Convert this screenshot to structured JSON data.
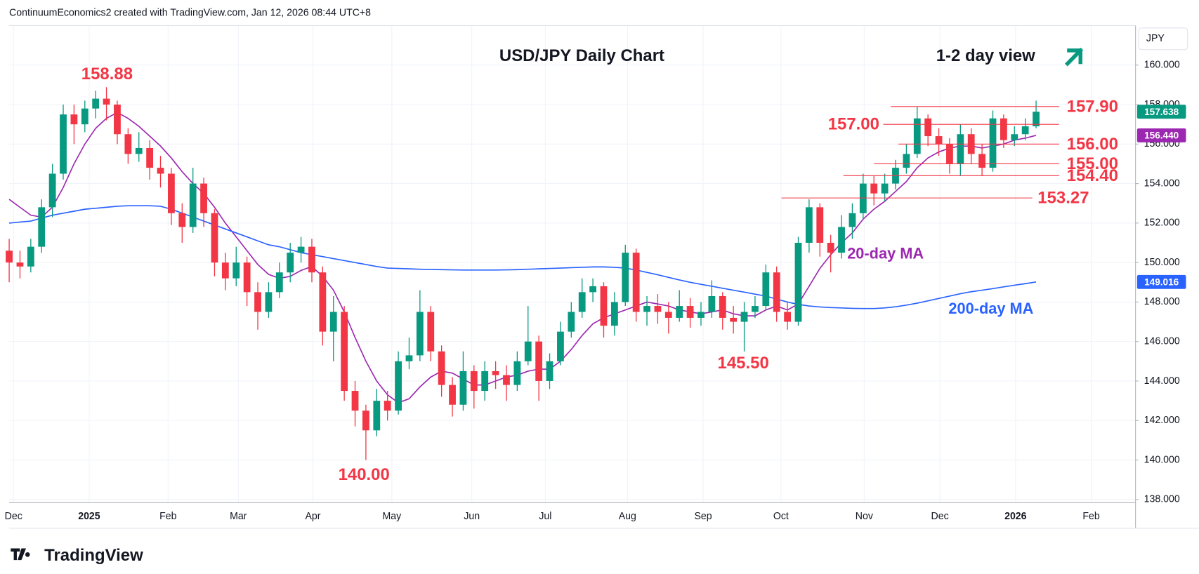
{
  "header": "ContinuumEconomics2 created with TradingView.com, Jan 12, 2026 08:44 UTC+8",
  "logo": "TradingView",
  "chart_data": {
    "type": "candlestick",
    "title": "USD/JPY Daily Chart",
    "subtitle": "1-2 day view",
    "currency": "JPY",
    "up_color": "#089981",
    "down_color": "#f23645",
    "grid": true,
    "xlim": [
      0,
      104.2
    ],
    "xticks": [
      {
        "value": 0.4,
        "label": "Dec"
      },
      {
        "value": 7.4,
        "label": "2025"
      },
      {
        "value": 14.7,
        "label": "Feb"
      },
      {
        "value": 21.2,
        "label": "Mar"
      },
      {
        "value": 28.1,
        "label": "Apr"
      },
      {
        "value": 35.4,
        "label": "May"
      },
      {
        "value": 42.8,
        "label": "Jun"
      },
      {
        "value": 49.6,
        "label": "Jul"
      },
      {
        "value": 57.2,
        "label": "Aug"
      },
      {
        "value": 64.2,
        "label": "Sep"
      },
      {
        "value": 71.4,
        "label": "Oct"
      },
      {
        "value": 79.1,
        "label": "Nov"
      },
      {
        "value": 86.1,
        "label": "Dec"
      },
      {
        "value": 93.1,
        "label": "2026"
      },
      {
        "value": 100.1,
        "label": "Feb"
      }
    ],
    "ylim": [
      137.84,
      162.0
    ],
    "yticks": [
      {
        "value": 138,
        "label": "138.000"
      },
      {
        "value": 140,
        "label": "140.000"
      },
      {
        "value": 142,
        "label": "142.000"
      },
      {
        "value": 144,
        "label": "144.000"
      },
      {
        "value": 146,
        "label": "146.000"
      },
      {
        "value": 148,
        "label": "148.000"
      },
      {
        "value": 150,
        "label": "150.000"
      },
      {
        "value": 152,
        "label": "152.000"
      },
      {
        "value": 154,
        "label": "154.000"
      },
      {
        "value": 156,
        "label": "156.000"
      },
      {
        "value": 158,
        "label": "158.000"
      },
      {
        "value": 160,
        "label": "160.000"
      }
    ],
    "open": [
      150.6,
      150.0,
      149.8,
      150.8,
      152.8,
      154.5,
      157.5,
      157.0,
      157.8,
      158.3,
      158.0,
      156.5,
      155.5,
      155.8,
      154.8,
      154.5,
      152.5,
      151.8,
      154.0,
      152.5,
      150.0,
      149.2,
      150.0,
      148.5,
      147.5,
      148.5,
      149.5,
      150.5,
      150.8,
      149.5,
      146.5,
      147.5,
      143.5,
      142.5,
      141.5,
      143.0,
      142.5,
      145.0,
      145.3,
      147.5,
      145.5,
      143.8,
      142.8,
      144.5,
      143.5,
      144.5,
      144.3,
      143.8,
      145.0,
      146.0,
      144.0,
      145.0,
      146.5,
      147.5,
      148.5,
      148.8,
      146.8,
      148.0,
      150.5,
      147.5,
      147.8,
      147.5,
      147.2,
      147.8,
      147.2,
      147.5,
      148.3,
      147.2,
      147.0,
      147.5,
      147.8,
      149.5,
      147.5,
      147.0,
      151.0,
      152.8,
      151.0,
      150.5,
      151.8,
      152.5,
      154.0,
      153.5,
      154.0,
      154.8,
      155.5,
      157.3,
      156.4,
      156.0,
      155.0,
      156.5,
      155.5,
      154.8,
      157.3,
      156.2,
      156.5,
      156.9
    ],
    "high": [
      151.2,
      150.6,
      151.2,
      153.2,
      155.0,
      158.0,
      158.0,
      158.2,
      158.7,
      158.88,
      158.2,
      156.8,
      156.6,
      156.2,
      155.4,
      154.8,
      153.0,
      154.8,
      154.3,
      152.7,
      150.5,
      150.8,
      150.3,
      149.0,
      149.0,
      150.0,
      151.0,
      151.3,
      151.2,
      149.8,
      148.3,
      147.8,
      144.0,
      142.8,
      143.6,
      143.5,
      145.5,
      146.2,
      148.6,
      147.8,
      145.8,
      144.2,
      145.5,
      144.8,
      145.0,
      145.0,
      144.8,
      145.5,
      147.8,
      146.3,
      145.4,
      147.0,
      148.0,
      149.2,
      149.2,
      149.0,
      148.5,
      150.9,
      150.7,
      148.3,
      148.4,
      148.0,
      148.6,
      148.2,
      148.0,
      149.1,
      148.5,
      147.8,
      148.0,
      148.3,
      149.9,
      149.8,
      148.0,
      151.3,
      153.2,
      153.0,
      151.4,
      152.4,
      153.0,
      154.5,
      154.4,
      154.5,
      155.2,
      156.0,
      157.9,
      157.5,
      156.8,
      156.3,
      157.0,
      156.8,
      156.0,
      157.7,
      157.5,
      156.9,
      157.3,
      158.2
    ],
    "low": [
      149.0,
      149.2,
      149.5,
      150.5,
      152.3,
      154.2,
      156.0,
      156.6,
      157.3,
      157.2,
      156.0,
      155.0,
      155.1,
      154.2,
      153.8,
      151.9,
      151.0,
      151.5,
      151.8,
      149.3,
      148.6,
      148.8,
      147.8,
      146.6,
      147.2,
      148.2,
      149.0,
      150.0,
      149.0,
      145.8,
      145.0,
      143.0,
      141.7,
      140.0,
      141.2,
      142.0,
      142.3,
      144.6,
      145.0,
      145.0,
      143.2,
      142.2,
      142.5,
      142.6,
      143.0,
      143.6,
      143.0,
      143.5,
      144.8,
      143.0,
      143.6,
      144.8,
      146.2,
      147.2,
      148.0,
      146.2,
      146.3,
      147.8,
      147.0,
      146.8,
      146.9,
      146.4,
      147.0,
      146.7,
      146.8,
      147.2,
      146.6,
      146.4,
      145.5,
      147.2,
      147.6,
      147.0,
      146.6,
      146.8,
      150.5,
      150.3,
      149.5,
      150.2,
      151.2,
      152.2,
      152.9,
      153.1,
      153.7,
      154.5,
      155.3,
      155.9,
      155.4,
      154.5,
      154.4,
      155.0,
      154.4,
      154.6,
      155.8,
      155.9,
      156.2,
      156.8
    ],
    "close": [
      150.0,
      149.8,
      150.8,
      152.8,
      154.5,
      157.5,
      157.0,
      157.8,
      158.3,
      158.0,
      156.5,
      155.5,
      155.8,
      154.8,
      154.5,
      152.5,
      151.8,
      154.0,
      152.5,
      150.0,
      149.2,
      150.0,
      148.5,
      147.5,
      148.5,
      149.5,
      150.5,
      150.8,
      149.5,
      146.5,
      147.5,
      143.5,
      142.5,
      141.5,
      143.0,
      142.5,
      145.0,
      145.3,
      147.5,
      145.5,
      143.8,
      142.8,
      144.5,
      143.5,
      144.5,
      144.3,
      143.8,
      145.0,
      146.0,
      144.0,
      145.0,
      146.5,
      147.5,
      148.5,
      148.8,
      146.8,
      148.0,
      150.5,
      147.5,
      147.8,
      147.5,
      147.2,
      147.8,
      147.2,
      147.5,
      148.3,
      147.2,
      147.0,
      147.5,
      147.8,
      149.5,
      147.5,
      147.0,
      151.0,
      152.8,
      151.0,
      150.5,
      151.8,
      152.5,
      154.0,
      153.5,
      154.0,
      154.8,
      155.5,
      157.3,
      156.4,
      156.0,
      155.0,
      156.5,
      155.5,
      154.8,
      157.3,
      156.2,
      156.5,
      156.9,
      157.638
    ],
    "series": [
      {
        "name": "20-day MA",
        "color": "#9c27b0",
        "values": [
          153.2,
          152.8,
          152.4,
          152.3,
          152.8,
          153.8,
          155.0,
          156.0,
          156.8,
          157.3,
          157.6,
          157.3,
          156.9,
          156.4,
          155.9,
          155.3,
          154.6,
          154.0,
          153.5,
          152.8,
          152.0,
          151.3,
          150.6,
          149.9,
          149.4,
          149.2,
          149.3,
          149.6,
          149.8,
          149.3,
          148.6,
          147.5,
          146.2,
          145.0,
          144.0,
          143.3,
          142.9,
          143.1,
          143.7,
          144.2,
          144.5,
          144.4,
          144.1,
          143.8,
          143.8,
          144.0,
          144.2,
          144.3,
          144.5,
          144.6,
          144.6,
          145.0,
          145.6,
          146.3,
          146.9,
          147.2,
          147.4,
          147.6,
          147.8,
          148.0,
          147.9,
          147.8,
          147.6,
          147.5,
          147.4,
          147.5,
          147.6,
          147.4,
          147.3,
          147.3,
          147.6,
          147.8,
          147.6,
          147.9,
          148.8,
          149.7,
          150.4,
          151.0,
          151.5,
          152.2,
          152.7,
          153.1,
          153.6,
          154.1,
          154.8,
          155.3,
          155.6,
          155.8,
          155.9,
          155.9,
          155.8,
          155.9,
          156.0,
          156.2,
          156.3,
          156.44
        ],
        "value_labels": [
          null,
          null,
          null,
          null,
          null,
          null,
          null,
          null,
          null,
          null,
          null,
          null,
          null,
          null,
          null,
          null,
          null,
          null,
          null,
          null,
          null,
          null,
          null,
          null,
          null,
          null,
          null,
          null,
          null,
          null,
          null,
          null,
          null,
          null,
          null,
          null,
          null,
          null,
          null,
          null,
          null,
          null,
          null,
          null,
          null,
          null,
          null,
          null,
          null,
          null,
          null,
          null,
          null,
          null,
          null,
          null,
          null,
          null,
          null,
          null,
          null,
          null,
          null,
          null,
          null,
          null,
          null,
          null,
          null,
          null,
          null,
          null,
          null,
          null,
          null,
          null,
          null,
          null,
          null,
          null,
          null,
          null,
          null,
          null,
          null,
          null,
          null,
          null,
          null,
          null,
          null,
          null,
          null,
          null,
          null,
          "156.440"
        ]
      },
      {
        "name": "200-day MA",
        "color": "#2962ff",
        "values": [
          152.0,
          152.05,
          152.1,
          152.25,
          152.4,
          152.5,
          152.6,
          152.7,
          152.75,
          152.8,
          152.85,
          152.88,
          152.88,
          152.88,
          152.85,
          152.7,
          152.5,
          152.3,
          152.1,
          151.9,
          151.7,
          151.5,
          151.3,
          151.1,
          150.9,
          150.8,
          150.65,
          150.5,
          150.4,
          150.3,
          150.2,
          150.1,
          150.0,
          149.9,
          149.8,
          149.72,
          149.7,
          149.68,
          149.66,
          149.65,
          149.64,
          149.63,
          149.62,
          149.62,
          149.62,
          149.62,
          149.63,
          149.64,
          149.66,
          149.68,
          149.7,
          149.72,
          149.74,
          149.76,
          149.78,
          149.78,
          149.76,
          149.72,
          149.62,
          149.5,
          149.38,
          149.25,
          149.12,
          149.0,
          148.9,
          148.8,
          148.7,
          148.6,
          148.5,
          148.4,
          148.3,
          148.15,
          148.0,
          147.88,
          147.8,
          147.75,
          147.72,
          147.7,
          147.68,
          147.67,
          147.67,
          147.7,
          147.76,
          147.84,
          147.94,
          148.06,
          148.18,
          148.3,
          148.42,
          148.52,
          148.6,
          148.68,
          148.77,
          148.85,
          148.93,
          149.016
        ]
      }
    ],
    "levels": [
      {
        "value": 157.9,
        "label": "157.90"
      },
      {
        "value": 157,
        "label": "157.00"
      },
      {
        "value": 156,
        "label": "156.00"
      },
      {
        "value": 155,
        "label": "155.00"
      },
      {
        "value": 154.4,
        "label": "154.40"
      },
      {
        "value": 153.27,
        "label": "153.27"
      }
    ],
    "annotations": [
      {
        "value": 158.88,
        "label": "158.88"
      },
      {
        "value": 140,
        "label": "140.00"
      },
      {
        "value": 145.5,
        "label": "145.50"
      }
    ]
  }
}
